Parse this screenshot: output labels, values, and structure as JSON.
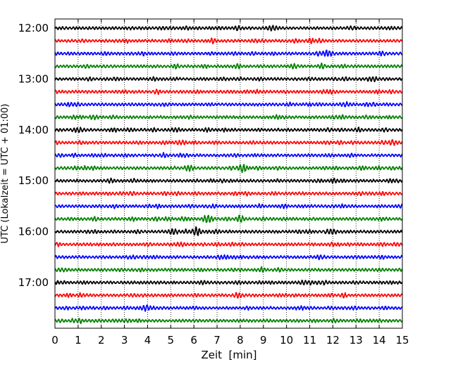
{
  "chart_data": {
    "type": "line",
    "chart_kind": "helicorder",
    "xlabel": "Zeit  [min]",
    "ylabel": "UTC (Lokalzeit = UTC + 01:00)",
    "xlim": [
      0,
      15
    ],
    "x_ticks": [
      0,
      1,
      2,
      3,
      4,
      5,
      6,
      7,
      8,
      9,
      10,
      11,
      12,
      13,
      14,
      15
    ],
    "x_tick_labels": [
      "0",
      "1",
      "2",
      "3",
      "4",
      "5",
      "6",
      "7",
      "8",
      "9",
      "10",
      "11",
      "12",
      "13",
      "14",
      "15"
    ],
    "y_tick_labels": [
      "12:00",
      "13:00",
      "14:00",
      "15:00",
      "16:00",
      "17:00"
    ],
    "trace_minutes": 15,
    "traces_per_hour": 4,
    "trace_count": 24,
    "trace_colors": [
      "#000000",
      "#ff0000",
      "#0000ff",
      "#008000"
    ],
    "vertical_grid": "dotted",
    "traces_start_utc": "12:00",
    "notable_bursts": [
      {
        "trace": 2,
        "minute": 11.8,
        "strength": 0.6
      },
      {
        "trace": 8,
        "minute": 1.0,
        "strength": 0.4
      },
      {
        "trace": 9,
        "minute": 14.6,
        "strength": 0.45
      },
      {
        "trace": 11,
        "minute": 8.1,
        "strength": 0.9
      },
      {
        "trace": 11,
        "minute": 5.8,
        "strength": 0.5
      },
      {
        "trace": 15,
        "minute": 6.6,
        "strength": 0.9
      },
      {
        "trace": 15,
        "minute": 8.0,
        "strength": 0.7
      },
      {
        "trace": 16,
        "minute": 6.1,
        "strength": 0.9
      },
      {
        "trace": 16,
        "minute": 5.1,
        "strength": 0.5
      },
      {
        "trace": 22,
        "minute": 3.9,
        "strength": 0.5
      }
    ]
  }
}
